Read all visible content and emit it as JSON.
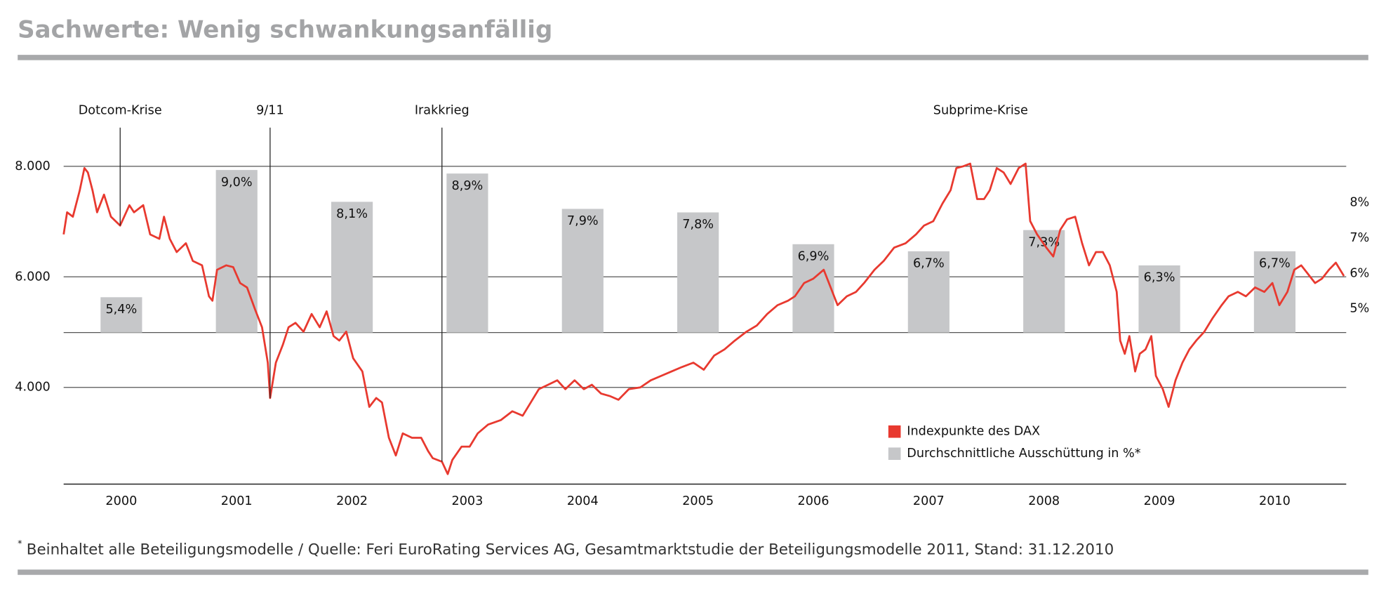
{
  "chart_data": {
    "type": "combo",
    "title": "Sachwerte: Wenig schwankungsanfällig",
    "categories": [
      "2000",
      "2001",
      "2002",
      "2003",
      "2004",
      "2005",
      "2006",
      "2007",
      "2008",
      "2009",
      "2010"
    ],
    "xlim": [
      2000,
      2011.12
    ],
    "ylim": [
      2250,
      8700
    ],
    "yticks": [
      {
        "value": 4000,
        "label": "4.000"
      },
      {
        "value": 6000,
        "label": "6.000"
      },
      {
        "value": 8000,
        "label": "8.000"
      }
    ],
    "y2lim": [
      4.4,
      10.2
    ],
    "y2ticks": [
      {
        "value": 5,
        "label": "5%"
      },
      {
        "value": 6,
        "label": "6%"
      },
      {
        "value": 7,
        "label": "7%"
      },
      {
        "value": 8,
        "label": "8%"
      }
    ],
    "grid": true,
    "series": [
      {
        "name": "Indexpunkte des DAX",
        "type": "line",
        "color": "#e8392f",
        "x": [
          2000,
          2000.03,
          2000.08,
          2000.14,
          2000.18,
          2000.21,
          2000.25,
          2000.29,
          2000.35,
          2000.41,
          2000.49,
          2000.57,
          2000.61,
          2000.69,
          2000.75,
          2000.83,
          2000.87,
          2000.92,
          2000.98,
          2001.06,
          2001.12,
          2001.2,
          2001.26,
          2001.29,
          2001.33,
          2001.41,
          2001.47,
          2001.53,
          2001.59,
          2001.66,
          2001.72,
          2001.77,
          2001.79,
          2001.84,
          2001.9,
          2001.95,
          2002.01,
          2002.08,
          2002.15,
          2002.22,
          2002.28,
          2002.34,
          2002.39,
          2002.45,
          2002.51,
          2002.59,
          2002.65,
          2002.71,
          2002.76,
          2002.82,
          2002.88,
          2002.94,
          2003.02,
          2003.1,
          2003.16,
          2003.2,
          2003.28,
          2003.33,
          2003.37,
          2003.45,
          2003.52,
          2003.59,
          2003.68,
          2003.79,
          2003.89,
          2003.98,
          2004.05,
          2004.12,
          2004.2,
          2004.28,
          2004.35,
          2004.43,
          2004.51,
          2004.58,
          2004.66,
          2004.74,
          2004.81,
          2004.9,
          2005.0,
          2005.09,
          2005.18,
          2005.27,
          2005.36,
          2005.46,
          2005.55,
          2005.64,
          2005.73,
          2005.82,
          2005.92,
          2006.01,
          2006.1,
          2006.19,
          2006.28,
          2006.34,
          2006.42,
          2006.5,
          2006.59,
          2006.65,
          2006.71,
          2006.79,
          2006.87,
          2006.94,
          2007.03,
          2007.11,
          2007.2,
          2007.3,
          2007.39,
          2007.46,
          2007.54,
          2007.62,
          2007.69,
          2007.74,
          2007.8,
          2007.86,
          2007.92,
          2007.98,
          2008.03,
          2008.09,
          2008.15,
          2008.21,
          2008.28,
          2008.34,
          2008.38,
          2008.44,
          2008.52,
          2008.58,
          2008.64,
          2008.7,
          2008.77,
          2008.83,
          2008.89,
          2008.95,
          2009.01,
          2009.07,
          2009.13,
          2009.16,
          2009.2,
          2009.24,
          2009.29,
          2009.33,
          2009.38,
          2009.43,
          2009.47,
          2009.53,
          2009.58,
          2009.64,
          2009.7,
          2009.76,
          2009.82,
          2009.89,
          2009.96,
          2010.04,
          2010.1,
          2010.18,
          2010.25,
          2010.33,
          2010.41,
          2010.48,
          2010.54,
          2010.61,
          2010.67,
          2010.73,
          2010.79,
          2010.85,
          2010.91,
          2010.97,
          2011.03,
          2011.1
        ],
        "values": [
          6768,
          7168,
          7088,
          7568,
          7968,
          7888,
          7568,
          7168,
          7488,
          7088,
          6928,
          7296,
          7168,
          7296,
          6768,
          6688,
          7088,
          6688,
          6448,
          6608,
          6288,
          6208,
          5648,
          5568,
          6128,
          6208,
          6176,
          5888,
          5808,
          5408,
          5088,
          4448,
          3808,
          4448,
          4768,
          5088,
          5168,
          5008,
          5328,
          5088,
          5376,
          4928,
          4848,
          5008,
          4528,
          4288,
          3648,
          3808,
          3728,
          3088,
          2768,
          3168,
          3088,
          3088,
          2848,
          2720,
          2656,
          2432,
          2688,
          2928,
          2928,
          3168,
          3328,
          3408,
          3568,
          3488,
          3728,
          3968,
          4048,
          4128,
          3968,
          4128,
          3968,
          4048,
          3888,
          3840,
          3776,
          3968,
          4000,
          4128,
          4208,
          4288,
          4368,
          4448,
          4320,
          4576,
          4688,
          4848,
          5008,
          5120,
          5328,
          5488,
          5568,
          5648,
          5888,
          5968,
          6128,
          5808,
          5488,
          5648,
          5728,
          5888,
          6128,
          6288,
          6528,
          6608,
          6768,
          6928,
          7008,
          7328,
          7568,
          7968,
          8000,
          8048,
          7408,
          7408,
          7568,
          7968,
          7888,
          7680,
          7968,
          8048,
          7008,
          6768,
          6528,
          6368,
          6848,
          7040,
          7088,
          6608,
          6208,
          6448,
          6448,
          6208,
          5728,
          4848,
          4608,
          4928,
          4288,
          4608,
          4688,
          4928,
          4208,
          3968,
          3648,
          4128,
          4448,
          4688,
          4848,
          5008,
          5248,
          5488,
          5648,
          5728,
          5648,
          5808,
          5728,
          5888,
          5488,
          5728,
          6128,
          6208,
          6048,
          5888,
          5968,
          6128,
          6256,
          6016
        ]
      },
      {
        "name": "Durchschnittliche Ausschüttung in %*",
        "type": "bar",
        "axis": "y2",
        "color": "#c6c7c9",
        "values": [
          5.4,
          9.0,
          8.1,
          8.9,
          7.9,
          7.8,
          6.9,
          6.7,
          7.3,
          6.3,
          6.7
        ],
        "value_labels": [
          "5,4%",
          "9,0%",
          "8,1%",
          "8,9%",
          "7,9%",
          "7,8%",
          "6,9%",
          "6,7%",
          "7,3%",
          "6,3%",
          "6,7%"
        ]
      }
    ],
    "annotations": [
      {
        "text": "Dotcom-Krise",
        "x": 2000.49,
        "line": true
      },
      {
        "text": "9/11",
        "x": 2001.79,
        "line": true
      },
      {
        "text": "Irakkrieg",
        "x": 2003.28,
        "line": true
      },
      {
        "text": "Subprime-Krise",
        "x": 2007.95,
        "line": false
      }
    ],
    "footnote_marker": "*",
    "footnote": "Beinhaltet alle Beteiligungsmodelle / Quelle: Feri EuroRating Services AG, Gesamtmarktstudie der Beteiligungsmodelle 2011, Stand: 31.12.2010"
  }
}
